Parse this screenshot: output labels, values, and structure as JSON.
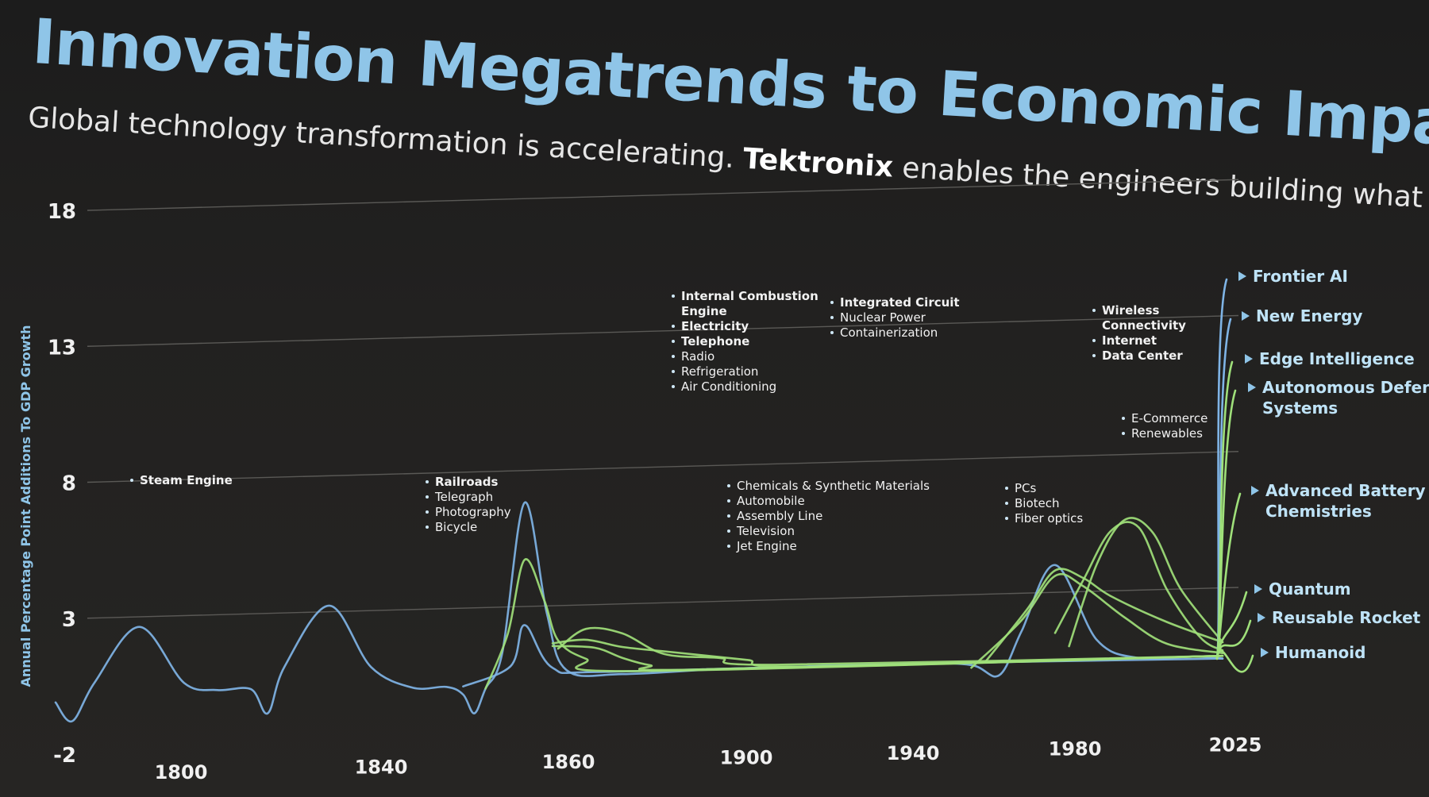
{
  "title": "Innovation Megatrends to Economic Impact",
  "subtitle": {
    "part1": "Global technology transformation is accelerating.",
    "brand": "Tektronix",
    "part2": "enables the engineers building what comes next."
  },
  "colors": {
    "title": "#8fc5e8",
    "blue": "#7fb4e6",
    "green": "#9fe07a",
    "grid": "#5a5956"
  },
  "chart_data": {
    "type": "line",
    "ylabel": "Annual Percentage Point Additions To GDP Growth",
    "ylim": [
      -2,
      18
    ],
    "yticks": [
      -2,
      3,
      8,
      13,
      18
    ],
    "xticks": [
      "1800",
      "1840",
      "1860",
      "1900",
      "1940",
      "1980",
      "2025"
    ],
    "grid": true,
    "annotations": [
      {
        "items": [
          "Steam Engine"
        ]
      },
      {
        "items": [
          "Railroads",
          "Telegraph",
          "Photography",
          "Bicycle"
        ]
      },
      {
        "items": [
          "Internal Combustion Engine",
          "Electricity",
          "Telephone",
          "Radio",
          "Refrigeration",
          "Air Conditioning"
        ]
      },
      {
        "items": [
          "Chemicals & Synthetic Materials",
          "Automobile",
          "Assembly Line",
          "Television",
          "Jet Engine"
        ]
      },
      {
        "items": [
          "Integrated Circuit",
          "Nuclear Power",
          "Containerization"
        ]
      },
      {
        "items": [
          "PCs",
          "Biotech",
          "Fiber optics"
        ]
      },
      {
        "items": [
          "Wireless Connectivity",
          "Internet",
          "Data Center"
        ]
      },
      {
        "items": [
          "E-Commerce",
          "Renewables"
        ]
      }
    ],
    "series": [
      {
        "name": "Frontier AI",
        "end_value": 16.8
      },
      {
        "name": "New Energy",
        "end_value": 15.2
      },
      {
        "name": "Edge Intelligence",
        "end_value": 13.2
      },
      {
        "name": "Autonomous Defense Systems",
        "end_value": 12.4
      },
      {
        "name": "Advanced Battery Chemistries",
        "end_value": 5.2
      },
      {
        "name": "Quantum",
        "end_value": 2.6
      },
      {
        "name": "Reusable Rocket",
        "end_value": 2.0
      },
      {
        "name": "Humanoid",
        "end_value": 1.4
      }
    ],
    "curves": [
      {
        "color": "blue",
        "points": [
          [
            1782,
            -0.1
          ],
          [
            1788,
            -0.8
          ],
          [
            1796,
            0.6
          ],
          [
            1812,
            2.6
          ],
          [
            1828,
            0.5
          ],
          [
            1840,
            0.2
          ],
          [
            1852,
            0.2
          ],
          [
            1858,
            -0.7
          ],
          [
            1864,
            1.0
          ],
          [
            1880,
            3.2
          ],
          [
            1895,
            0.9
          ],
          [
            1910,
            0.1
          ],
          [
            1922,
            0.1
          ],
          [
            1928,
            -0.2
          ],
          [
            1932,
            -0.9
          ],
          [
            1936,
            0.0
          ],
          [
            1942,
            1.3
          ],
          [
            1950,
            6.8
          ],
          [
            1958,
            2.7
          ],
          [
            1965,
            0.6
          ],
          [
            1985,
            0.4
          ],
          [
            2025,
            0.5
          ],
          [
            2090,
            0.5
          ],
          [
            2110,
            0.4
          ],
          [
            2120,
            0.0
          ],
          [
            2128,
            1.6
          ],
          [
            2140,
            4.0
          ],
          [
            2155,
            1.2
          ],
          [
            2170,
            0.5
          ],
          [
            2190,
            0.5
          ],
          [
            2200,
            0.4
          ]
        ]
      },
      {
        "color": "blue",
        "points": [
          [
            1928,
            0.1
          ],
          [
            1945,
            0.8
          ],
          [
            1950,
            2.3
          ],
          [
            1960,
            0.7
          ],
          [
            1980,
            0.5
          ],
          [
            2090,
            0.5
          ],
          [
            2200,
            0.4
          ]
        ]
      },
      {
        "color": "green",
        "points": [
          [
            1936,
            0.0
          ],
          [
            1944,
            2.0
          ],
          [
            1950,
            4.7
          ],
          [
            1957,
            3.2
          ],
          [
            1962,
            1.7
          ],
          [
            1972,
            1.0
          ],
          [
            1990,
            0.5
          ],
          [
            2200,
            0.5
          ]
        ]
      },
      {
        "color": "green",
        "points": [
          [
            1960,
            1.5
          ],
          [
            1975,
            1.4
          ],
          [
            1985,
            1.0
          ],
          [
            1995,
            0.7
          ],
          [
            2010,
            0.5
          ],
          [
            2200,
            0.5
          ]
        ]
      },
      {
        "color": "green",
        "points": [
          [
            1960,
            1.6
          ],
          [
            1972,
            1.7
          ],
          [
            1985,
            1.4
          ],
          [
            2000,
            1.2
          ],
          [
            2015,
            1.0
          ],
          [
            2030,
            0.8
          ],
          [
            2050,
            0.5
          ],
          [
            2200,
            0.5
          ]
        ]
      },
      {
        "color": "green",
        "points": [
          [
            1962,
            1.4
          ],
          [
            1972,
            2.1
          ],
          [
            1985,
            1.9
          ],
          [
            2000,
            1.1
          ],
          [
            2020,
            0.9
          ],
          [
            2040,
            0.6
          ],
          [
            2200,
            0.5
          ]
        ]
      },
      {
        "color": "green",
        "points": [
          [
            2110,
            0.3
          ],
          [
            2128,
            2.0
          ],
          [
            2140,
            3.6
          ],
          [
            2150,
            3.2
          ],
          [
            2165,
            2.0
          ],
          [
            2180,
            1.0
          ],
          [
            2200,
            0.6
          ]
        ]
      },
      {
        "color": "green",
        "points": [
          [
            2115,
            0.5
          ],
          [
            2130,
            2.4
          ],
          [
            2140,
            3.8
          ],
          [
            2150,
            3.5
          ],
          [
            2160,
            2.8
          ],
          [
            2180,
            1.8
          ],
          [
            2200,
            1.0
          ]
        ]
      },
      {
        "color": "green",
        "points": [
          [
            2140,
            1.5
          ],
          [
            2150,
            3.4
          ],
          [
            2160,
            5.2
          ],
          [
            2170,
            5.3
          ],
          [
            2180,
            3.0
          ],
          [
            2192,
            1.2
          ],
          [
            2200,
            0.7
          ]
        ]
      },
      {
        "color": "green",
        "points": [
          [
            2145,
            1.0
          ],
          [
            2155,
            4.0
          ],
          [
            2165,
            5.6
          ],
          [
            2175,
            5.1
          ],
          [
            2185,
            3.0
          ],
          [
            2200,
            1.0
          ]
        ]
      }
    ]
  }
}
